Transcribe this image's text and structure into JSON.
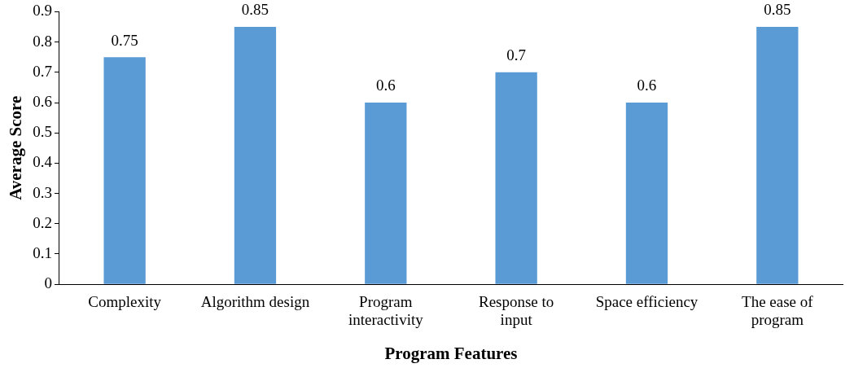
{
  "chart_data": {
    "type": "bar",
    "xlabel": "Program Features",
    "ylabel": "Average Score",
    "categories": [
      "Complexity",
      "Algorithm design",
      "Program interactivity",
      "Response to input",
      "Space efficiency",
      "The ease of program"
    ],
    "values": [
      0.75,
      0.85,
      0.6,
      0.7,
      0.6,
      0.85
    ],
    "color": "#5b9bd5",
    "ylim": [
      0,
      0.9
    ],
    "yticks": [
      0,
      0.1,
      0.2,
      0.3,
      0.4,
      0.5,
      0.6,
      0.7,
      0.8,
      0.9
    ],
    "data_labels": true,
    "grid": false,
    "legend": false
  }
}
